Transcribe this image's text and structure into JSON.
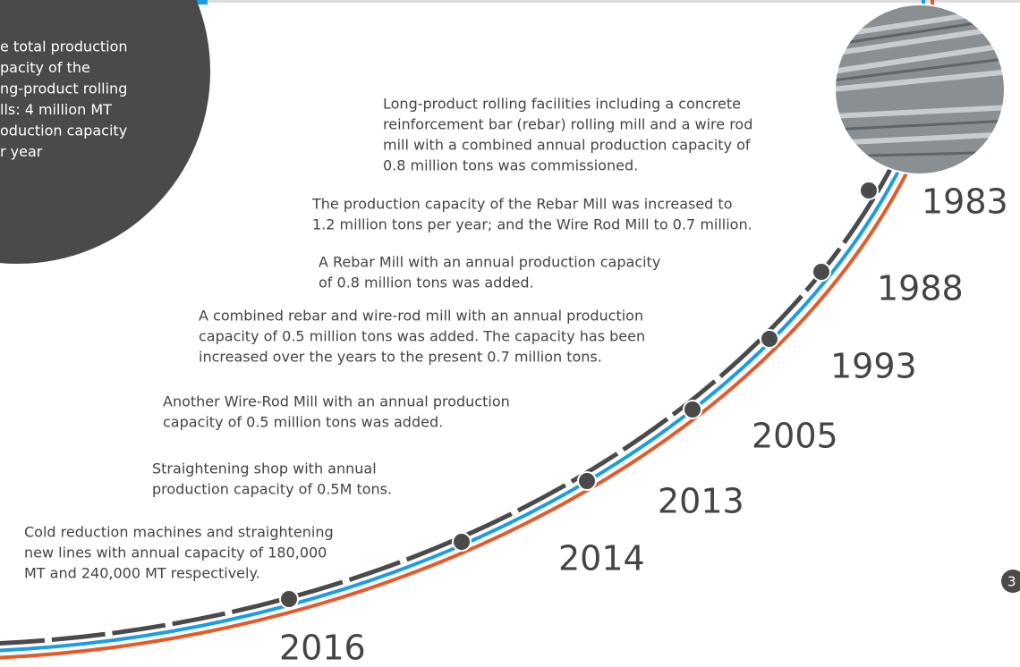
{
  "intro": {
    "lines": [
      "e total production",
      "pacity of the",
      "ng-product rolling",
      "lls: 4 million MT",
      "oduction capacity",
      "r year"
    ]
  },
  "timeline": [
    {
      "year": "1983",
      "lines": [
        "Long-product rolling facilities including a concrete",
        "reinforcement bar (rebar) rolling mill and a wire rod",
        "mill with a combined annual production capacity of",
        "0.8 million tons was commissioned."
      ]
    },
    {
      "year": "1988",
      "lines": [
        "The production capacity of the Rebar Mill was increased to",
        "1.2 million tons per year; and the Wire Rod Mill to 0.7 million."
      ]
    },
    {
      "year": "1993",
      "lines": [
        "A Rebar Mill with an annual production capacity",
        "of 0.8 million tons was added."
      ]
    },
    {
      "year": "2005",
      "lines": [
        "A combined rebar and wire-rod mill with an annual production",
        "capacity of 0.5 million tons was added. The capacity has been",
        "increased over the years to the present 0.7 million tons."
      ]
    },
    {
      "year": "2013",
      "lines": [
        "Another Wire-Rod Mill with an annual production",
        "capacity of 0.5 million tons was added."
      ]
    },
    {
      "year": "2014",
      "lines": [
        "Straightening shop with annual",
        "production capacity of 0.5M tons."
      ]
    },
    {
      "year": "2016",
      "lines": [
        "Cold reduction machines and straightening",
        "new lines with annual capacity of 180,000",
        "MT and 240,000 MT respectively."
      ]
    }
  ],
  "page_number": "3"
}
